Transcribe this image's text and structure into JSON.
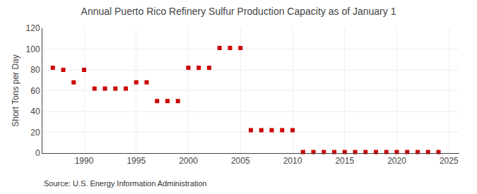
{
  "chart_data": {
    "type": "scatter",
    "title": "Annual Puerto Rico Refinery Sulfur Production Capacity as of January 1",
    "ylabel": "Short Tons per Day",
    "annotations": [
      "Source: U.S. Energy Information Administration"
    ],
    "x": [
      1987,
      1988,
      1989,
      1990,
      1991,
      1992,
      1993,
      1994,
      1995,
      1996,
      1997,
      1998,
      1999,
      2000,
      2001,
      2002,
      2003,
      2004,
      2005,
      2006,
      2007,
      2008,
      2009,
      2010,
      2011,
      2012,
      2013,
      2014,
      2015,
      2016,
      2017,
      2018,
      2019,
      2020,
      2021,
      2022,
      2023,
      2024
    ],
    "values": [
      82,
      80,
      68,
      80,
      62,
      62,
      62,
      62,
      68,
      68,
      50,
      50,
      50,
      82,
      82,
      82,
      101,
      101,
      101,
      22,
      22,
      22,
      22,
      22,
      1,
      1,
      1,
      1,
      1,
      1,
      1,
      1,
      1,
      1,
      1,
      1,
      1,
      1
    ],
    "color": "#cc0000",
    "marker": "square",
    "xlim": [
      1986,
      2026
    ],
    "ylim": [
      0,
      120
    ],
    "xticks": [
      1990,
      1995,
      2000,
      2005,
      2010,
      2015,
      2020,
      2025
    ],
    "yticks": [
      0,
      20,
      40,
      60,
      80,
      100,
      120
    ],
    "grid": true
  }
}
